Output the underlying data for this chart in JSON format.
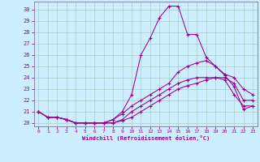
{
  "xlabel": "Windchill (Refroidissement éolien,°C)",
  "background_color": "#cceeff",
  "grid_color": "#aacccc",
  "line_color": "#990099",
  "x_ticks": [
    0,
    1,
    2,
    3,
    4,
    5,
    6,
    7,
    8,
    9,
    10,
    11,
    12,
    13,
    14,
    15,
    16,
    17,
    18,
    19,
    20,
    21,
    22,
    23
  ],
  "y_ticks": [
    20,
    21,
    22,
    23,
    24,
    25,
    26,
    27,
    28,
    29,
    30
  ],
  "ylim": [
    19.7,
    30.7
  ],
  "xlim": [
    -0.5,
    23.5
  ],
  "series": [
    [
      21.0,
      20.5,
      20.5,
      20.3,
      20.0,
      20.0,
      20.0,
      20.0,
      20.0,
      20.2,
      20.5,
      21.0,
      21.5,
      22.0,
      22.5,
      23.0,
      23.3,
      23.5,
      23.8,
      24.0,
      23.8,
      22.5,
      21.5,
      21.5
    ],
    [
      21.0,
      20.5,
      20.5,
      20.3,
      20.0,
      20.0,
      20.0,
      20.0,
      20.0,
      20.3,
      21.0,
      21.5,
      22.0,
      22.5,
      23.0,
      23.5,
      23.8,
      24.0,
      24.0,
      24.0,
      24.0,
      23.5,
      22.0,
      22.0
    ],
    [
      21.0,
      20.5,
      20.5,
      20.3,
      20.0,
      20.0,
      20.0,
      20.0,
      20.3,
      20.8,
      21.5,
      22.0,
      22.5,
      23.0,
      23.5,
      24.5,
      25.0,
      25.3,
      25.5,
      25.0,
      24.3,
      24.0,
      23.0,
      22.5
    ],
    [
      21.0,
      20.5,
      20.5,
      20.3,
      20.0,
      20.0,
      20.0,
      20.0,
      20.3,
      21.0,
      22.5,
      26.0,
      27.5,
      29.3,
      30.3,
      30.3,
      27.8,
      27.8,
      25.8,
      25.0,
      24.2,
      23.2,
      21.2,
      21.5
    ]
  ]
}
